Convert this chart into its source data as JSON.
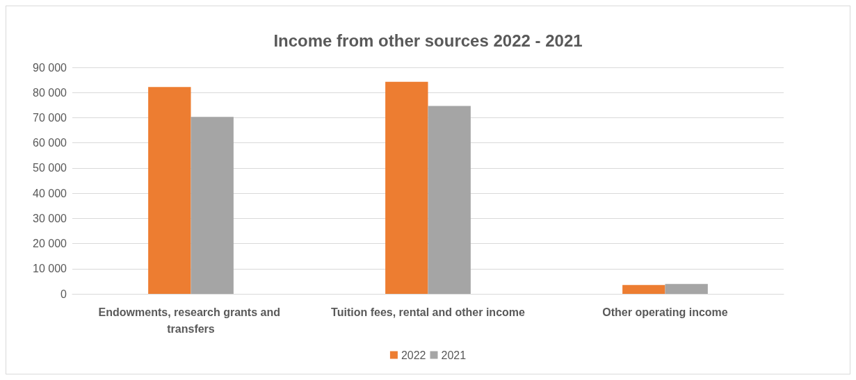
{
  "chart_data": {
    "type": "bar",
    "title": "Income from other sources 2022 - 2021",
    "categories": [
      "Endowments, research grants and transfers",
      "Tuition fees, rental and other income",
      "Other operating income"
    ],
    "series": [
      {
        "name": "2022",
        "color": "#ed7d31",
        "values": [
          82200,
          84300,
          3500
        ]
      },
      {
        "name": "2021",
        "color": "#a5a5a5",
        "values": [
          70300,
          74700,
          3900
        ]
      }
    ],
    "ylim": [
      0,
      90000
    ],
    "yticks": [
      {
        "value": 0,
        "label": "0"
      },
      {
        "value": 10000,
        "label": "10 000"
      },
      {
        "value": 20000,
        "label": "20 000"
      },
      {
        "value": 30000,
        "label": "30 000"
      },
      {
        "value": 40000,
        "label": "40 000"
      },
      {
        "value": 50000,
        "label": "50 000"
      },
      {
        "value": 60000,
        "label": "60 000"
      },
      {
        "value": 70000,
        "label": "70 000"
      },
      {
        "value": 80000,
        "label": "80 000"
      },
      {
        "value": 90000,
        "label": "90 000"
      }
    ],
    "grid": "y",
    "legend": "bottom"
  }
}
